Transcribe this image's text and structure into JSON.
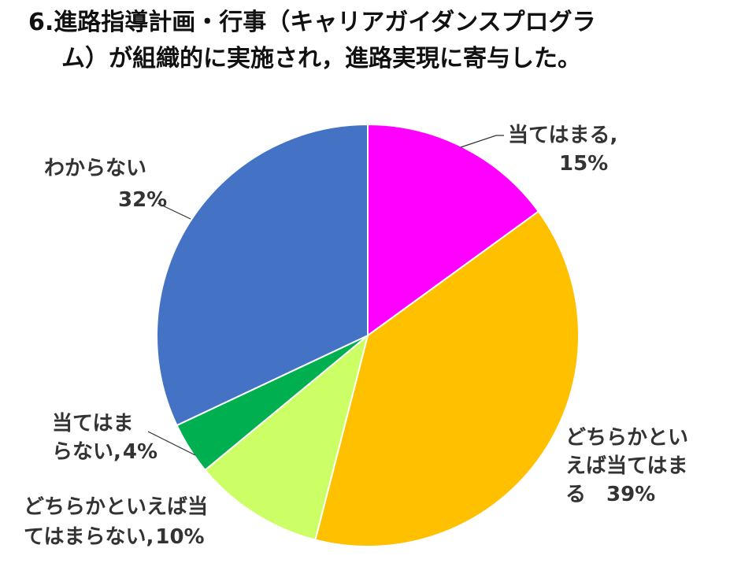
{
  "chart_data": {
    "type": "pie",
    "title_line1": "6.進路指導計画・行事（キャリアガイダンスプログラ",
    "title_line2": "ム）が組織的に実施され，進路実現に寄与した。",
    "unit": "%",
    "start_angle_deg": 0,
    "direction": "clockwise",
    "slices": [
      {
        "label_lines": [
          "当てはまる,"
        ],
        "value_text": "15%",
        "value": 15,
        "color": "#FF00FF"
      },
      {
        "label_lines": [
          "どちらかとい",
          "えば当てはま",
          "る"
        ],
        "value_text": "39%",
        "value": 39,
        "color": "#FFC000"
      },
      {
        "label_lines": [
          "どちらかといえば当",
          "てはまらない,"
        ],
        "value_text": "10%",
        "value": 10,
        "color": "#CCFF66"
      },
      {
        "label_lines": [
          "当てはま",
          "らない,"
        ],
        "value_text": "4%",
        "value": 4,
        "color": "#00B050"
      },
      {
        "label_lines": [
          "わからない"
        ],
        "value_text": "32%",
        "value": 32,
        "color": "#4472C4"
      }
    ]
  }
}
